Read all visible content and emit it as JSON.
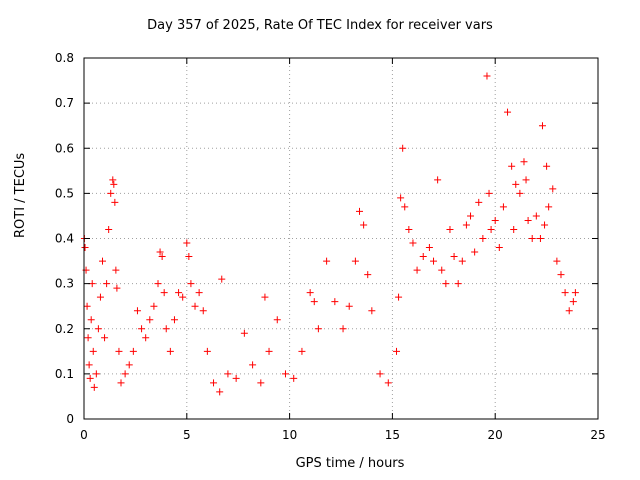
{
  "chart_data": {
    "type": "scatter",
    "title": "Day 357 of 2025, Rate Of TEC Index for receiver vars",
    "xlabel": "GPS time / hours",
    "ylabel": "ROTI / TECUs",
    "xlim": [
      0,
      25
    ],
    "ylim": [
      0,
      0.8
    ],
    "xticks": [
      0,
      5,
      10,
      15,
      20,
      25
    ],
    "xtick_labels": [
      "0",
      "5",
      "10",
      "15",
      "20",
      "25"
    ],
    "yticks": [
      0,
      0.1,
      0.2,
      0.3,
      0.4,
      0.5,
      0.6,
      0.7,
      0.8
    ],
    "ytick_labels": [
      "0",
      "0.1",
      "0.2",
      "0.3",
      "0.4",
      "0.5",
      "0.6",
      "0.7",
      "0.8"
    ],
    "grid": true,
    "marker": "+",
    "color": "#ff0000",
    "series": [
      {
        "name": "ROTI",
        "x": [
          0.02,
          0.05,
          0.1,
          0.15,
          0.2,
          0.25,
          0.3,
          0.35,
          0.4,
          0.45,
          0.5,
          0.6,
          0.7,
          0.8,
          0.9,
          1.0,
          1.1,
          1.2,
          1.3,
          1.4,
          1.45,
          1.5,
          1.55,
          1.6,
          1.7,
          1.8,
          2.0,
          2.2,
          2.4,
          2.6,
          2.8,
          3.0,
          3.2,
          3.4,
          3.6,
          3.7,
          3.8,
          3.9,
          4.0,
          4.2,
          4.4,
          4.6,
          4.8,
          5.0,
          5.1,
          5.2,
          5.4,
          5.6,
          5.8,
          6.0,
          6.3,
          6.6,
          6.7,
          7.0,
          7.4,
          7.8,
          8.2,
          8.6,
          8.8,
          9.0,
          9.4,
          9.8,
          10.2,
          10.6,
          11.0,
          11.2,
          11.4,
          11.8,
          12.2,
          12.6,
          12.9,
          13.2,
          13.4,
          13.6,
          13.8,
          14.0,
          14.4,
          14.8,
          15.2,
          15.3,
          15.4,
          15.5,
          15.6,
          15.8,
          16.0,
          16.2,
          16.5,
          16.8,
          17.0,
          17.2,
          17.4,
          17.6,
          17.8,
          18.0,
          18.2,
          18.4,
          18.6,
          18.8,
          19.0,
          19.2,
          19.4,
          19.6,
          19.7,
          19.8,
          20.0,
          20.2,
          20.4,
          20.6,
          20.8,
          20.9,
          21.0,
          21.2,
          21.4,
          21.5,
          21.6,
          21.8,
          22.0,
          22.2,
          22.3,
          22.4,
          22.5,
          22.6,
          22.8,
          23.0,
          23.2,
          23.4,
          23.6,
          23.8,
          23.9
        ],
        "y": [
          0.4,
          0.38,
          0.33,
          0.25,
          0.18,
          0.12,
          0.09,
          0.22,
          0.3,
          0.15,
          0.07,
          0.1,
          0.2,
          0.27,
          0.35,
          0.18,
          0.3,
          0.42,
          0.5,
          0.53,
          0.52,
          0.48,
          0.33,
          0.29,
          0.15,
          0.08,
          0.1,
          0.12,
          0.15,
          0.24,
          0.2,
          0.18,
          0.22,
          0.25,
          0.3,
          0.37,
          0.36,
          0.28,
          0.2,
          0.15,
          0.22,
          0.28,
          0.27,
          0.39,
          0.36,
          0.3,
          0.25,
          0.28,
          0.24,
          0.15,
          0.08,
          0.06,
          0.31,
          0.1,
          0.09,
          0.19,
          0.12,
          0.08,
          0.27,
          0.15,
          0.22,
          0.1,
          0.09,
          0.15,
          0.28,
          0.26,
          0.2,
          0.35,
          0.26,
          0.2,
          0.25,
          0.35,
          0.46,
          0.43,
          0.32,
          0.24,
          0.1,
          0.08,
          0.15,
          0.27,
          0.49,
          0.6,
          0.47,
          0.42,
          0.39,
          0.33,
          0.36,
          0.38,
          0.35,
          0.53,
          0.33,
          0.3,
          0.42,
          0.36,
          0.3,
          0.35,
          0.43,
          0.45,
          0.37,
          0.48,
          0.4,
          0.76,
          0.5,
          0.42,
          0.44,
          0.38,
          0.47,
          0.68,
          0.56,
          0.42,
          0.52,
          0.5,
          0.57,
          0.53,
          0.44,
          0.4,
          0.45,
          0.4,
          0.65,
          0.43,
          0.56,
          0.47,
          0.51,
          0.35,
          0.32,
          0.28,
          0.24,
          0.26,
          0.28
        ]
      }
    ]
  }
}
